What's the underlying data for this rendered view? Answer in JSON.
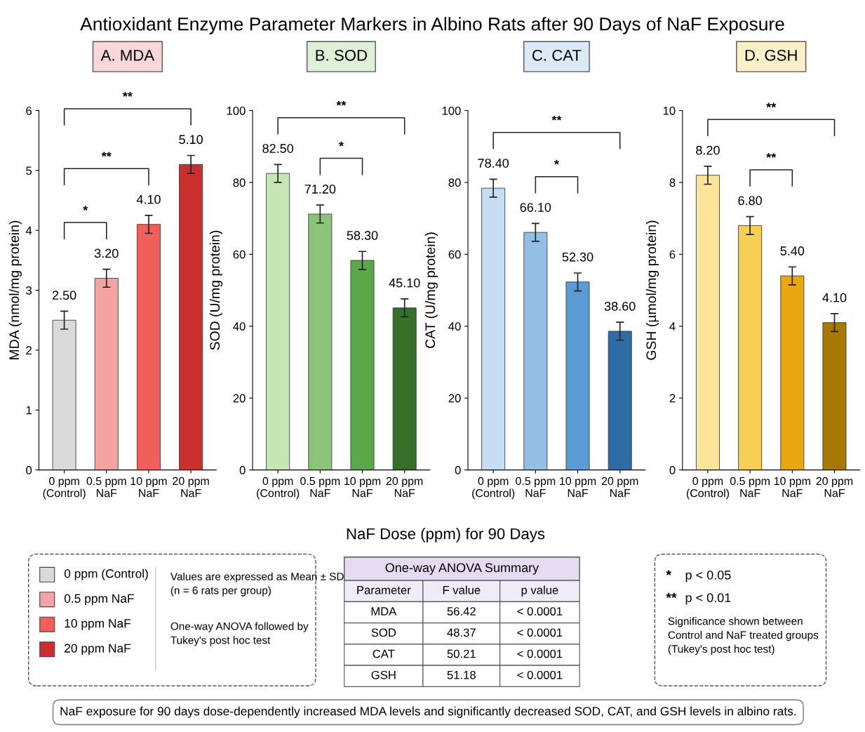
{
  "chart_data": [
    {
      "type": "bar",
      "title": "A. MDA",
      "ylabel": "MDA (nmol/mg protein)",
      "categories": [
        "0 ppm\n(Control)",
        "0.5 ppm\nNaF",
        "10 ppm\nNaF",
        "20 ppm\nNaF"
      ],
      "values": [
        2.5,
        3.2,
        4.1,
        5.1
      ],
      "value_labels": [
        "2.50",
        "3.20",
        "4.10",
        "5.10"
      ],
      "errors": [
        0.15,
        0.15,
        0.15,
        0.15
      ],
      "colors": [
        "#dadada",
        "#f4a3a3",
        "#f15f5b",
        "#c9302f"
      ],
      "ylim": [
        0,
        6
      ],
      "yticks": [
        0,
        1,
        2,
        3,
        4,
        5,
        6
      ],
      "annotations": [
        "*",
        "**",
        "**"
      ]
    },
    {
      "type": "bar",
      "title": "B. SOD",
      "ylabel": "SOD (U/mg protein)",
      "categories": [
        "0 ppm\n(Control)",
        "0.5 ppm\nNaF",
        "10 ppm\nNaF",
        "20 ppm\nNaF"
      ],
      "values": [
        82.5,
        71.2,
        58.3,
        45.1
      ],
      "value_labels": [
        "82.50",
        "71.20",
        "58.30",
        "45.10"
      ],
      "errors": [
        2.5,
        2.5,
        2.5,
        2.5
      ],
      "colors": [
        "#c8e6b5",
        "#8dc47b",
        "#5ba84b",
        "#356f29"
      ],
      "ylim": [
        0,
        100
      ],
      "yticks": [
        0,
        20,
        40,
        60,
        80,
        100
      ],
      "annotations": [
        "*",
        "**"
      ]
    },
    {
      "type": "bar",
      "title": "C. CAT",
      "ylabel": "CAT (U/mg protein)",
      "categories": [
        "0 ppm\n(Control)",
        "0.5 ppm\nNaF",
        "10 ppm\nNaF",
        "20 ppm\nNaF"
      ],
      "values": [
        78.4,
        66.1,
        52.3,
        38.6
      ],
      "value_labels": [
        "78.40",
        "66.10",
        "52.30",
        "38.60"
      ],
      "errors": [
        2.5,
        2.5,
        2.5,
        2.5
      ],
      "colors": [
        "#c6def3",
        "#94bee4",
        "#5b9bd6",
        "#2f6ba4"
      ],
      "ylim": [
        0,
        100
      ],
      "yticks": [
        0,
        20,
        40,
        60,
        80,
        100
      ],
      "annotations": [
        "*",
        "**"
      ]
    },
    {
      "type": "bar",
      "title": "D. GSH",
      "ylabel": "GSH (µmol/mg protein)",
      "categories": [
        "0 ppm\n(Control)",
        "0.5 ppm\nNaF",
        "10 ppm\nNaF",
        "20 ppm\nNaF"
      ],
      "values": [
        8.2,
        6.8,
        5.4,
        4.1
      ],
      "value_labels": [
        "8.20",
        "6.80",
        "5.40",
        "4.10"
      ],
      "errors": [
        0.25,
        0.25,
        0.25,
        0.25
      ],
      "colors": [
        "#fce59b",
        "#f8cf56",
        "#e9a811",
        "#a87807"
      ],
      "ylim": [
        0,
        10
      ],
      "yticks": [
        0,
        2,
        4,
        6,
        8,
        10
      ],
      "annotations": [
        "**",
        "**"
      ]
    },
    {
      "type": "other",
      "title": "Antioxidant Enzyme Parameter Markers in Albino Rats after 90 Days of NaF Exposure",
      "xlabel": "NaF Dose (ppm) for 90 Days",
      "annotations": [
        "NaF exposure for 90 days dose-dependently increased MDA levels and significantly decreased SOD, CAT, and GSH levels in albino rats."
      ]
    },
    {
      "type": "other",
      "categories": [
        "0 ppm (Control)",
        "0.5 ppm NaF",
        "10 ppm NaF",
        "20 ppm NaF"
      ],
      "colors": [
        "#dadada",
        "#f4a3a3",
        "#f15f5b",
        "#c9302f"
      ],
      "annotations": [
        "Values are expressed as Mean ± SD\n(n = 6 rats per group)",
        "One-way ANOVA followed by\nTukey's post hoc test"
      ]
    },
    {
      "type": "other",
      "title": "One-way ANOVA Summary",
      "annotations": [
        "Parameter",
        "F value",
        "p value",
        "MDA",
        "56.42",
        "< 0.0001",
        "SOD",
        "48.37",
        "< 0.0001",
        "CAT",
        "50.21",
        "< 0.0001",
        "GSH",
        "51.18",
        "< 0.0001"
      ]
    },
    {
      "type": "other",
      "categories": [
        "*",
        "**"
      ],
      "annotations": [
        "p < 0.05",
        "p < 0.01",
        "Significance shown between\nControl and NaF treated groups\n(Tukey's post hoc test)"
      ]
    }
  ]
}
